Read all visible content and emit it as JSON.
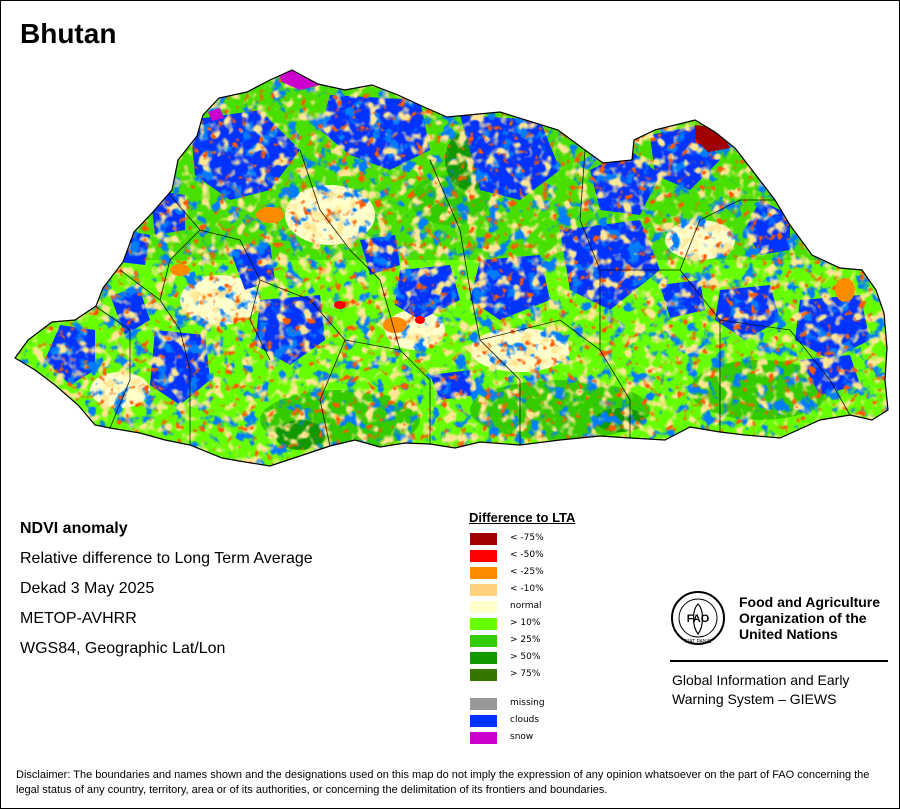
{
  "map": {
    "title": "Bhutan"
  },
  "info": {
    "heading": "NDVI anomaly",
    "lines": [
      "Relative difference to Long Term Average",
      "Dekad 3 May 2025",
      "METOP-AVHRR",
      "WGS84, Geographic Lat/Lon"
    ]
  },
  "legend": {
    "title": "Difference to LTA",
    "classes": [
      {
        "label": "< -75%",
        "color": "#a00000"
      },
      {
        "label": "< -50%",
        "color": "#ff0000"
      },
      {
        "label": "< -25%",
        "color": "#ff8c00"
      },
      {
        "label": "< -10%",
        "color": "#ffd27f"
      },
      {
        "label": "normal",
        "color": "#ffffcc"
      },
      {
        "label": "> 10%",
        "color": "#66ff00"
      },
      {
        "label": "> 25%",
        "color": "#33cc00"
      },
      {
        "label": "> 50%",
        "color": "#119900"
      },
      {
        "label": "> 75%",
        "color": "#337700"
      }
    ],
    "extra": [
      {
        "label": "missing",
        "color": "#999999"
      },
      {
        "label": "clouds",
        "color": "#0033ff"
      },
      {
        "label": "snow",
        "color": "#cc00cc"
      }
    ]
  },
  "organization": {
    "name_lines": [
      "Food and Agriculture",
      "Organization of the",
      "United Nations"
    ],
    "logo_text": "FAO",
    "logo_motto": "FIAT PANIS",
    "system_lines": [
      "Global Information and Early",
      "Warning System – GIEWS"
    ]
  },
  "disclaimer": "Disclaimer: The boundaries and names shown and the designations used on this map do not imply the expression of any opinion whatsoever on the part of FAO concerning the legal status of any country, territory, area or of its authorities, or concerning the delimitation of its frontiers and boundaries."
}
